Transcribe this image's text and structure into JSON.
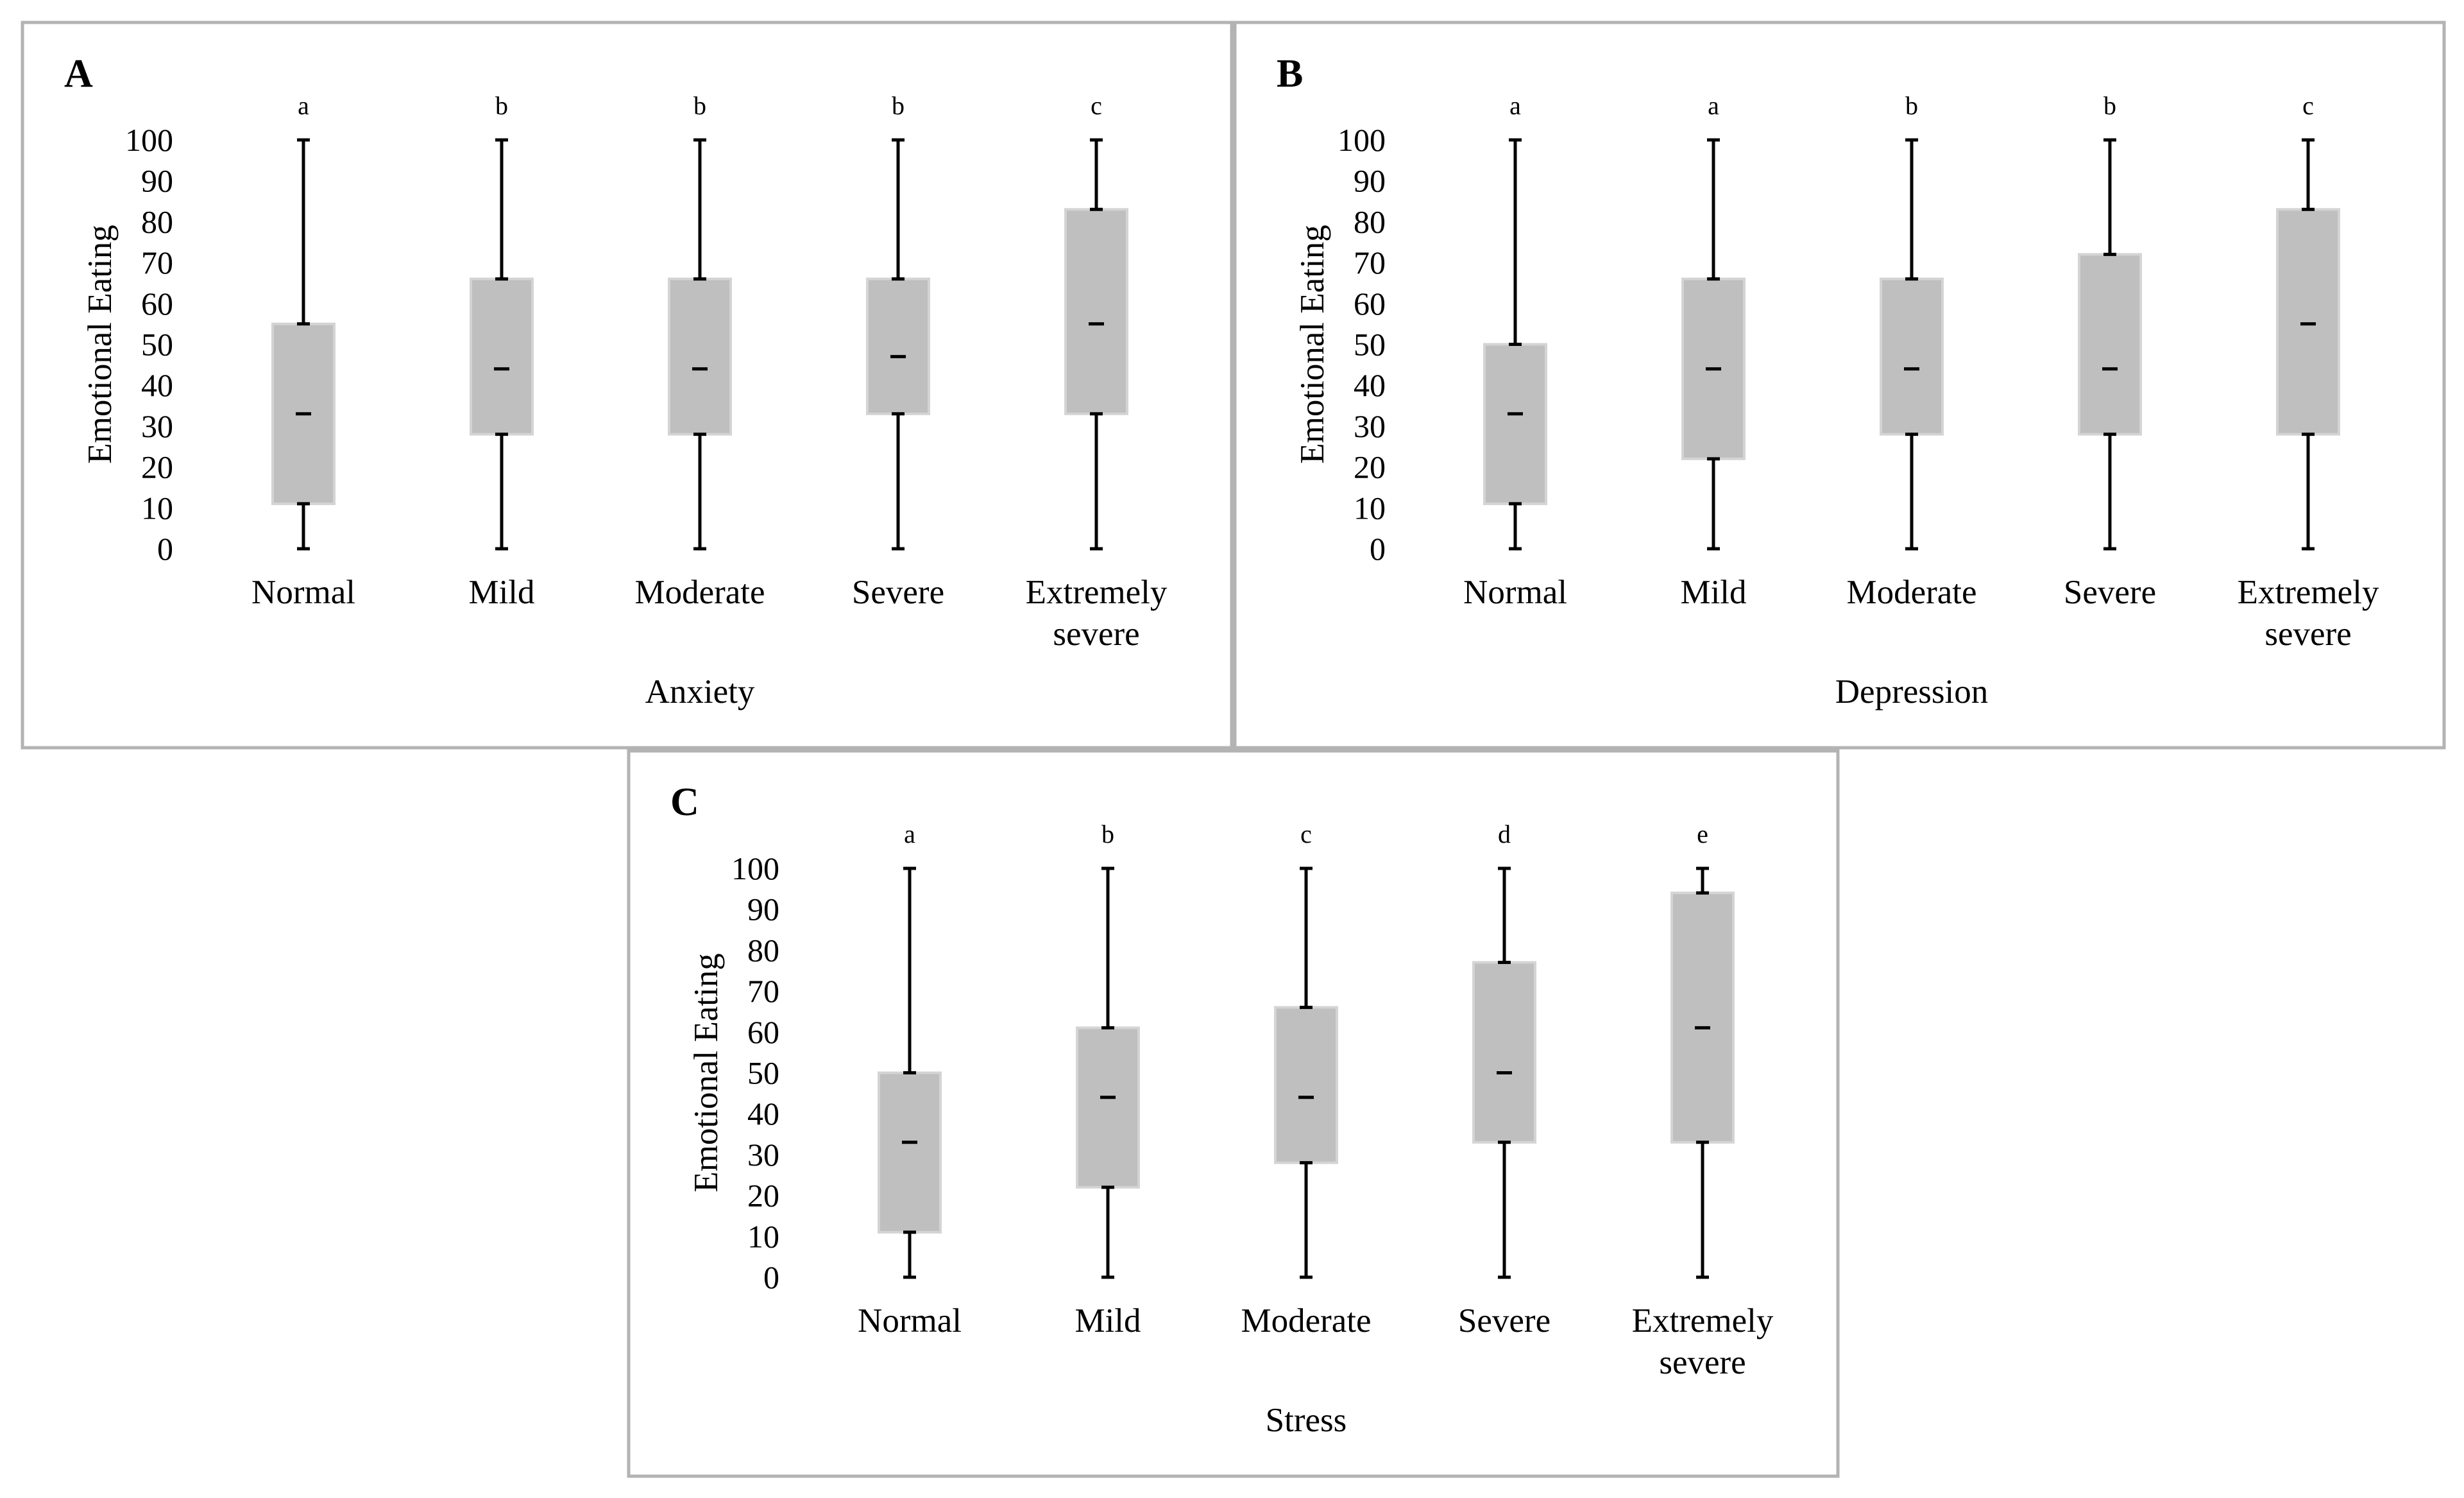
{
  "chart_data": [
    {
      "panel": "A",
      "type": "boxplot",
      "title": "",
      "ylabel": "Emotional Eating",
      "xlabel": "Anxiety",
      "ylim": [
        0,
        100
      ],
      "yticks": [
        0,
        10,
        20,
        30,
        40,
        50,
        60,
        70,
        80,
        90,
        100
      ],
      "categories": [
        [
          "Normal"
        ],
        [
          "Mild"
        ],
        [
          "Moderate"
        ],
        [
          "Severe"
        ],
        [
          "Extremely",
          "severe"
        ]
      ],
      "group_letters": [
        "a",
        "b",
        "b",
        "b",
        "c"
      ],
      "boxes": [
        {
          "min": 0,
          "q1": 11,
          "median": 33,
          "q3": 55,
          "max": 100
        },
        {
          "min": 0,
          "q1": 28,
          "median": 44,
          "q3": 66,
          "max": 100
        },
        {
          "min": 0,
          "q1": 28,
          "median": 44,
          "q3": 66,
          "max": 100
        },
        {
          "min": 0,
          "q1": 33,
          "median": 47,
          "q3": 66,
          "max": 100
        },
        {
          "min": 0,
          "q1": 33,
          "median": 55,
          "q3": 83,
          "max": 100
        }
      ]
    },
    {
      "panel": "B",
      "type": "boxplot",
      "title": "",
      "ylabel": "Emotional Eating",
      "xlabel": "Depression",
      "ylim": [
        0,
        100
      ],
      "yticks": [
        0,
        10,
        20,
        30,
        40,
        50,
        60,
        70,
        80,
        90,
        100
      ],
      "categories": [
        [
          "Normal"
        ],
        [
          "Mild"
        ],
        [
          "Moderate"
        ],
        [
          "Severe"
        ],
        [
          "Extremely",
          "severe"
        ]
      ],
      "group_letters": [
        "a",
        "a",
        "b",
        "b",
        "c"
      ],
      "boxes": [
        {
          "min": 0,
          "q1": 11,
          "median": 33,
          "q3": 50,
          "max": 100
        },
        {
          "min": 0,
          "q1": 22,
          "median": 44,
          "q3": 66,
          "max": 100
        },
        {
          "min": 0,
          "q1": 28,
          "median": 44,
          "q3": 66,
          "max": 100
        },
        {
          "min": 0,
          "q1": 28,
          "median": 44,
          "q3": 72,
          "max": 100
        },
        {
          "min": 0,
          "q1": 28,
          "median": 55,
          "q3": 83,
          "max": 100
        }
      ]
    },
    {
      "panel": "C",
      "type": "boxplot",
      "title": "",
      "ylabel": "Emotional Eating",
      "xlabel": "Stress",
      "ylim": [
        0,
        100
      ],
      "yticks": [
        0,
        10,
        20,
        30,
        40,
        50,
        60,
        70,
        80,
        90,
        100
      ],
      "categories": [
        [
          "Normal"
        ],
        [
          "Mild"
        ],
        [
          "Moderate"
        ],
        [
          "Severe"
        ],
        [
          "Extremely",
          "severe"
        ]
      ],
      "group_letters": [
        "a",
        "b",
        "c",
        "d",
        "e"
      ],
      "boxes": [
        {
          "min": 0,
          "q1": 11,
          "median": 33,
          "q3": 50,
          "max": 100
        },
        {
          "min": 0,
          "q1": 22,
          "median": 44,
          "q3": 61,
          "max": 100
        },
        {
          "min": 0,
          "q1": 28,
          "median": 44,
          "q3": 66,
          "max": 100
        },
        {
          "min": 0,
          "q1": 33,
          "median": 50,
          "q3": 77,
          "max": 100
        },
        {
          "min": 0,
          "q1": 33,
          "median": 61,
          "q3": 94,
          "max": 100
        }
      ]
    }
  ]
}
